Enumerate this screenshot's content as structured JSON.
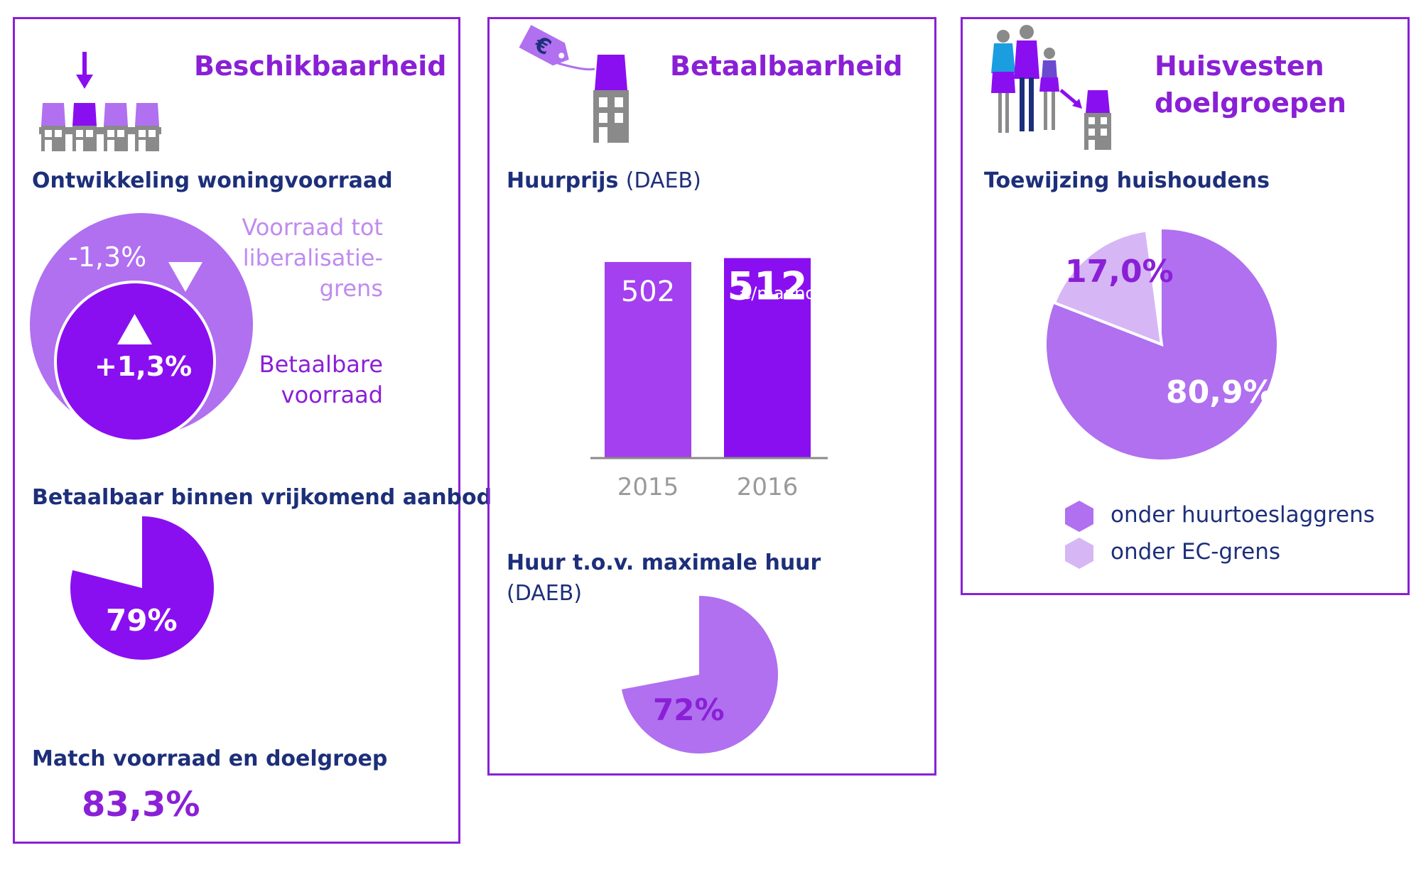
{
  "colors": {
    "frame": "#8a20d6",
    "navy": "#1d2f7a",
    "dark_purple": "#8a0ff0",
    "mid_purple": "#b070f0",
    "light_purple": "#d7b6f5",
    "house_gray": "#8a8a8a"
  },
  "panel1": {
    "title": "Beschikbaarheid",
    "icon": "houses-down-arrow-icon",
    "section1": {
      "heading": "Ontwikkeling woningvoorraad",
      "outer_value": "-1,3%",
      "outer_direction": "down",
      "outer_label": [
        "Voorraad tot",
        "liberalisatie-",
        "grens"
      ],
      "inner_value": "+1,3%",
      "inner_direction": "up",
      "inner_label": [
        "Betaalbare",
        "voorraad"
      ]
    },
    "section2": {
      "heading": "Betaalbaar binnen vrijkomend aanbod",
      "value_label": "79%"
    },
    "section3": {
      "heading": "Match voorraad en doelgroep",
      "value_label": "83,3%"
    }
  },
  "panel2": {
    "title": "Betaalbaarheid",
    "icon": "house-price-tag-euro-icon",
    "section1": {
      "heading": "Huurprijs",
      "heading_suffix": "(DAEB)",
      "unit_label": "€/maand"
    },
    "section2": {
      "heading": "Huur t.o.v. maximale huur",
      "heading_suffix": "(DAEB)",
      "value_label": "72%"
    }
  },
  "panel3": {
    "title_line1": "Huisvesten",
    "title_line2": "doelgroepen",
    "icon": "family-to-house-icon",
    "section1": {
      "heading": "Toewijzing huishoudens"
    },
    "legend": [
      {
        "label": "onder huurtoeslaggrens",
        "color": "#b070f0",
        "icon": "hexagon-icon"
      },
      {
        "label": "onder EC-grens",
        "color": "#d7b6f5",
        "icon": "hexagon-icon"
      }
    ]
  },
  "chart_data": [
    {
      "type": "pie",
      "labels": [
        "Betaalbaar binnen vrijkomend aanbod"
      ],
      "values": [
        79
      ],
      "value_labels": [
        "79%"
      ],
      "color": "#8a0ff0"
    },
    {
      "type": "bar",
      "title": "Huurprijs (DAEB)",
      "categories": [
        "2015",
        "2016"
      ],
      "values": [
        502,
        512
      ],
      "value_labels": [
        "502",
        "512"
      ],
      "unit": "€/maand",
      "colors": [
        "#a440ef",
        "#8a0ff0"
      ]
    },
    {
      "type": "pie",
      "labels": [
        "Huur t.o.v. maximale huur"
      ],
      "values": [
        72
      ],
      "value_labels": [
        "72%"
      ],
      "color": "#b070f0"
    },
    {
      "type": "pie",
      "title": "Toewijzing huishoudens",
      "labels": [
        "onder huurtoeslaggrens",
        "onder EC-grens"
      ],
      "values": [
        80.9,
        17.0
      ],
      "value_labels": [
        "80,9%",
        "17,0%"
      ],
      "colors": [
        "#b070f0",
        "#d7b6f5"
      ]
    }
  ]
}
